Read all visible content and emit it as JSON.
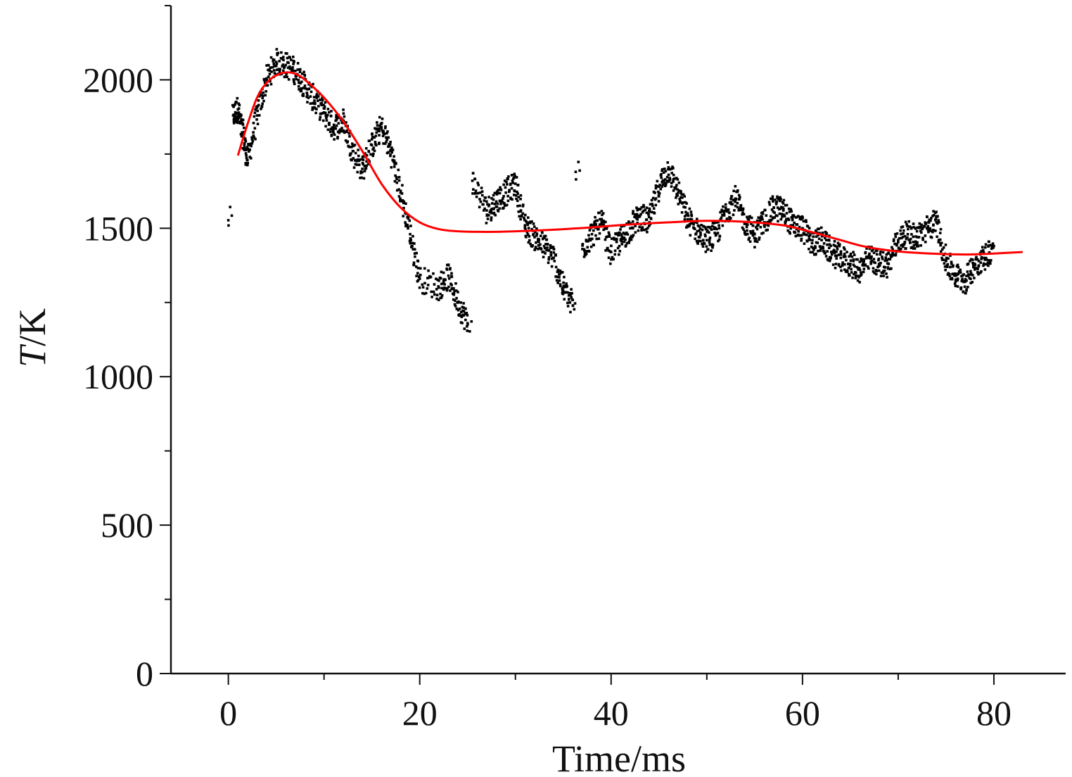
{
  "chart_data": {
    "type": "scatter",
    "xlabel": "Time/ms",
    "ylabel_parts": [
      "T",
      "/K"
    ],
    "xlim": [
      -6,
      87.5
    ],
    "ylim": [
      0,
      2250
    ],
    "xticks": [
      0,
      20,
      40,
      60,
      80
    ],
    "yticks": [
      0,
      500,
      1000,
      1500,
      2000
    ],
    "x_minor_step": 10,
    "y_minor_step": 250,
    "grid": false,
    "series": [
      {
        "kind": "points",
        "color": "#000000",
        "anchors": [
          [
            0.0,
            1527
          ],
          [
            0.5,
            1880
          ],
          [
            1.0,
            1900
          ],
          [
            1.5,
            1820
          ],
          [
            2.0,
            1730
          ],
          [
            3.0,
            1880
          ],
          [
            4.0,
            2000
          ],
          [
            5.0,
            2060
          ],
          [
            6.0,
            2050
          ],
          [
            7.0,
            2030
          ],
          [
            8.0,
            1980
          ],
          [
            9.0,
            1930
          ],
          [
            10.0,
            1890
          ],
          [
            11.0,
            1840
          ],
          [
            12.0,
            1860
          ],
          [
            13.0,
            1760
          ],
          [
            14.0,
            1700
          ],
          [
            15.0,
            1780
          ],
          [
            16.0,
            1840
          ],
          [
            17.0,
            1760
          ],
          [
            18.0,
            1620
          ],
          [
            19.0,
            1480
          ],
          [
            20.0,
            1330
          ],
          [
            22.0,
            1300
          ],
          [
            23.0,
            1340
          ],
          [
            24.0,
            1250
          ],
          [
            25.0,
            1180
          ],
          [
            25.5,
            1660
          ],
          [
            27.0,
            1560
          ],
          [
            28.0,
            1590
          ],
          [
            29.0,
            1620
          ],
          [
            30.0,
            1650
          ],
          [
            31.0,
            1510
          ],
          [
            32.0,
            1470
          ],
          [
            33.0,
            1440
          ],
          [
            34.0,
            1400
          ],
          [
            35.0,
            1300
          ],
          [
            36.0,
            1240
          ],
          [
            36.3,
            1690
          ],
          [
            37.0,
            1430
          ],
          [
            38.0,
            1480
          ],
          [
            39.0,
            1520
          ],
          [
            40.0,
            1420
          ],
          [
            41.0,
            1460
          ],
          [
            42.0,
            1500
          ],
          [
            43.0,
            1540
          ],
          [
            44.0,
            1520
          ],
          [
            45.0,
            1640
          ],
          [
            46.0,
            1700
          ],
          [
            47.0,
            1620
          ],
          [
            48.0,
            1530
          ],
          [
            49.0,
            1490
          ],
          [
            50.0,
            1460
          ],
          [
            51.0,
            1480
          ],
          [
            52.0,
            1560
          ],
          [
            53.0,
            1600
          ],
          [
            54.0,
            1520
          ],
          [
            55.0,
            1480
          ],
          [
            56.0,
            1520
          ],
          [
            57.0,
            1570
          ],
          [
            58.0,
            1560
          ],
          [
            59.0,
            1510
          ],
          [
            60.0,
            1500
          ],
          [
            61.0,
            1450
          ],
          [
            62.0,
            1460
          ],
          [
            63.0,
            1420
          ],
          [
            64.0,
            1400
          ],
          [
            65.0,
            1380
          ],
          [
            66.0,
            1360
          ],
          [
            67.0,
            1400
          ],
          [
            68.0,
            1380
          ],
          [
            69.0,
            1380
          ],
          [
            70.0,
            1460
          ],
          [
            71.0,
            1480
          ],
          [
            72.0,
            1470
          ],
          [
            73.0,
            1500
          ],
          [
            74.0,
            1520
          ],
          [
            75.0,
            1390
          ],
          [
            76.0,
            1340
          ],
          [
            77.0,
            1320
          ],
          [
            78.0,
            1380
          ],
          [
            79.0,
            1400
          ],
          [
            80.0,
            1440
          ]
        ]
      },
      {
        "kind": "fit-line",
        "color": "#ff0000",
        "x": [
          1.0,
          2.0,
          3.0,
          4.0,
          5.0,
          6.0,
          7.0,
          8.0,
          10.0,
          12.0,
          14.0,
          16.0,
          18.0,
          20.0,
          22.0,
          24.0,
          26.0,
          28.0,
          30.0,
          34.0,
          38.0,
          42.0,
          46.0,
          50.0,
          54.0,
          58.0,
          60.0,
          62.0,
          64.0,
          66.0,
          68.0,
          70.0,
          72.0,
          74.0,
          76.0,
          78.0,
          80.0,
          83.0
        ],
        "y": [
          1745,
          1850,
          1940,
          1990,
          2015,
          2025,
          2020,
          2000,
          1940,
          1860,
          1760,
          1650,
          1570,
          1520,
          1497,
          1490,
          1488,
          1488,
          1490,
          1495,
          1503,
          1513,
          1520,
          1525,
          1522,
          1510,
          1495,
          1478,
          1460,
          1442,
          1430,
          1422,
          1417,
          1414,
          1412,
          1412,
          1415,
          1420
        ]
      }
    ]
  }
}
